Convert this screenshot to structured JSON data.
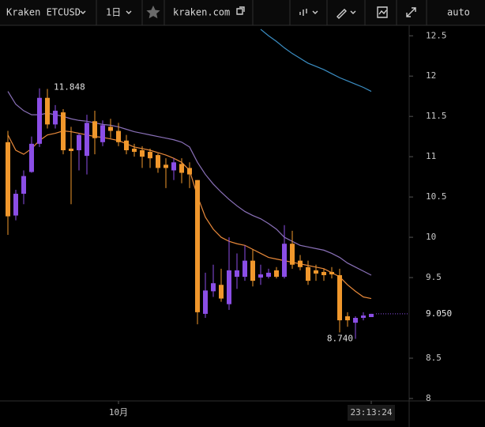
{
  "toolbar": {
    "symbol": "Kraken ETCUSD",
    "interval": "1日",
    "site": "kraken.com",
    "scale_mode": "auto"
  },
  "chart_data": {
    "type": "candlestick",
    "categories": [
      null,
      null,
      null,
      null,
      null,
      null,
      null,
      null,
      null,
      null,
      null,
      null,
      null,
      null,
      "10月",
      null,
      null,
      null,
      null,
      null,
      null,
      null,
      null,
      null,
      null,
      null,
      null,
      null,
      null,
      null,
      null,
      null,
      null,
      null,
      null,
      null,
      null,
      null,
      null,
      null,
      null,
      null,
      null,
      null,
      null,
      null,
      "23:13:24"
    ],
    "open": [
      11.18,
      10.27,
      10.54,
      10.81,
      11.16,
      11.73,
      11.4,
      11.55,
      11.1,
      11.08,
      11.01,
      11.44,
      11.18,
      11.37,
      11.32,
      11.2,
      11.1,
      11.08,
      11.06,
      11.02,
      10.9,
      10.83,
      10.91,
      10.86,
      10.71,
      9.05,
      9.33,
      9.41,
      9.17,
      9.51,
      9.51,
      9.71,
      9.5,
      9.51,
      9.59,
      9.51,
      9.92,
      9.71,
      9.63,
      9.59,
      9.57,
      9.57,
      9.53,
      9.02,
      8.94,
      9.0,
      9.01
    ],
    "high": [
      11.32,
      10.59,
      10.83,
      11.25,
      11.848,
      11.84,
      11.64,
      11.59,
      11.37,
      11.29,
      11.52,
      11.57,
      11.45,
      11.47,
      11.42,
      11.27,
      11.16,
      11.13,
      11.1,
      11.04,
      10.98,
      10.98,
      10.98,
      10.93,
      10.71,
      9.56,
      9.66,
      9.61,
      10.0,
      9.8,
      9.9,
      9.85,
      9.66,
      9.61,
      9.63,
      10.15,
      10.08,
      9.78,
      9.71,
      9.66,
      9.61,
      9.63,
      9.61,
      9.07,
      9.02,
      9.07,
      9.05
    ],
    "low": [
      10.03,
      10.21,
      10.41,
      10.8,
      11.12,
      11.35,
      11.35,
      11.03,
      10.41,
      10.83,
      10.78,
      11.03,
      11.13,
      11.23,
      11.13,
      11.03,
      11.0,
      10.86,
      10.86,
      10.8,
      10.61,
      10.71,
      10.67,
      10.61,
      8.92,
      9.0,
      9.26,
      9.2,
      9.1,
      9.36,
      9.46,
      9.39,
      9.41,
      9.49,
      9.49,
      9.49,
      9.61,
      9.59,
      9.41,
      9.46,
      9.46,
      9.49,
      8.82,
      8.89,
      8.74,
      8.97,
      9.01
    ],
    "close": [
      10.26,
      10.54,
      10.76,
      11.16,
      11.73,
      11.4,
      11.57,
      11.08,
      11.07,
      11.27,
      11.42,
      11.23,
      11.39,
      11.32,
      11.18,
      11.08,
      11.06,
      11.0,
      10.98,
      10.86,
      10.86,
      10.93,
      10.8,
      10.78,
      9.07,
      9.34,
      9.43,
      9.24,
      9.59,
      9.59,
      9.71,
      9.46,
      9.54,
      9.56,
      9.51,
      9.92,
      9.66,
      9.63,
      9.46,
      9.55,
      9.53,
      9.54,
      8.97,
      8.97,
      9.0,
      9.03,
      9.05
    ],
    "up_color": "#8b4ee6",
    "down_color": "#f0972c",
    "lines": [
      {
        "color": "#8a70b8",
        "values": [
          11.81,
          11.65,
          11.57,
          11.52,
          11.52,
          11.54,
          11.52,
          11.5,
          11.47,
          11.45,
          11.44,
          11.42,
          11.4,
          11.39,
          11.37,
          11.34,
          11.31,
          11.29,
          11.27,
          11.25,
          11.23,
          11.21,
          11.18,
          11.12,
          10.93,
          10.78,
          10.66,
          10.56,
          10.47,
          10.39,
          10.32,
          10.27,
          10.23,
          10.17,
          10.1,
          10.0,
          9.95,
          9.9,
          9.88,
          9.86,
          9.84,
          9.8,
          9.75,
          9.68,
          9.63,
          9.58,
          9.53
        ]
      },
      {
        "color": "#e8893a",
        "values": [
          11.27,
          11.08,
          11.03,
          11.1,
          11.2,
          11.27,
          11.29,
          11.32,
          11.31,
          11.29,
          11.27,
          11.25,
          11.24,
          11.22,
          11.2,
          11.16,
          11.12,
          11.1,
          11.08,
          11.05,
          11.02,
          10.98,
          10.93,
          10.83,
          10.51,
          10.25,
          10.1,
          10.0,
          9.95,
          9.92,
          9.9,
          9.85,
          9.8,
          9.75,
          9.73,
          9.71,
          9.69,
          9.67,
          9.65,
          9.63,
          9.61,
          9.56,
          9.51,
          9.41,
          9.33,
          9.26,
          9.24
        ]
      },
      {
        "color": "#3b8ec4",
        "values": [
          null,
          null,
          null,
          null,
          null,
          null,
          null,
          null,
          null,
          null,
          null,
          null,
          null,
          null,
          null,
          null,
          null,
          null,
          null,
          null,
          null,
          null,
          null,
          null,
          null,
          null,
          null,
          null,
          null,
          null,
          null,
          null,
          12.58,
          12.5,
          12.43,
          12.35,
          12.28,
          12.22,
          12.16,
          12.12,
          12.08,
          12.03,
          11.98,
          11.94,
          11.9,
          11.86,
          11.81
        ]
      }
    ],
    "ylim": [
      7.97,
      12.63
    ],
    "yticks": [
      8,
      8.5,
      9.5,
      10,
      10.5,
      11,
      11.5,
      12,
      12.5
    ],
    "last_price": {
      "value": 9.05,
      "label": "9.050"
    },
    "high_label": {
      "value": 11.848,
      "label": "11.848"
    },
    "low_label": {
      "value": 8.74,
      "label": "8.740"
    }
  }
}
